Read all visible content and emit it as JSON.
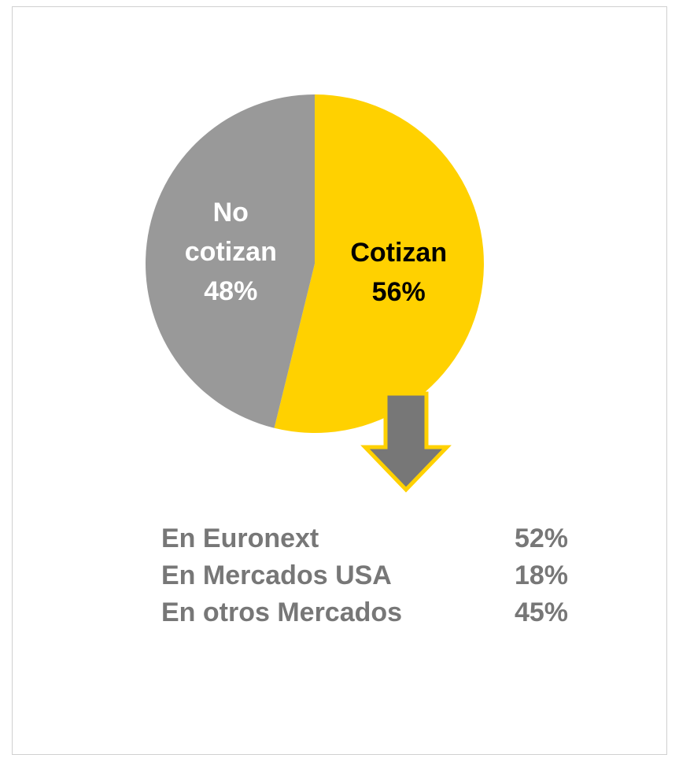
{
  "chart_data": {
    "type": "pie",
    "categories": [
      "Cotizan",
      "No cotizan"
    ],
    "values": [
      56,
      48
    ],
    "value_labels": [
      "56%",
      "48%"
    ],
    "colors": [
      "#FFD100",
      "#999999"
    ],
    "label_colors": [
      "#000000",
      "#FFFFFF"
    ],
    "breakdown": {
      "labels": [
        "En Euronext",
        "En Mercados USA",
        "En otros Mercados"
      ],
      "value_labels": [
        "52%",
        "18%",
        "45%"
      ]
    }
  }
}
